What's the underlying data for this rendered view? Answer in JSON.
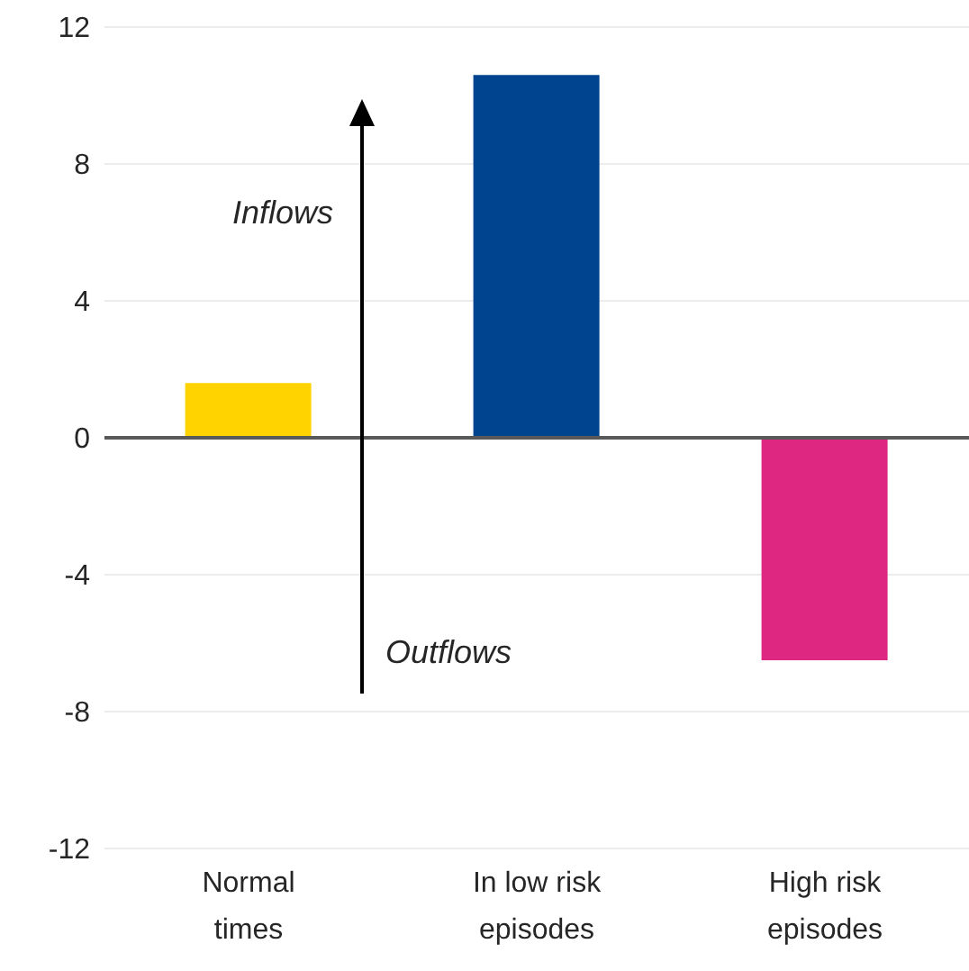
{
  "chart_data": {
    "type": "bar",
    "categories": [
      "Normal times",
      "In low risk episodes",
      "High risk episodes"
    ],
    "values": [
      1.6,
      10.6,
      -6.5
    ],
    "colors": [
      "#ffd300",
      "#00448f",
      "#dd2780"
    ],
    "ylim": [
      -12,
      12
    ],
    "yticks": [
      -12,
      -8,
      -4,
      0,
      4,
      8,
      12
    ],
    "grid": "y",
    "annotations": [
      "Inflows",
      "Outflows"
    ]
  }
}
